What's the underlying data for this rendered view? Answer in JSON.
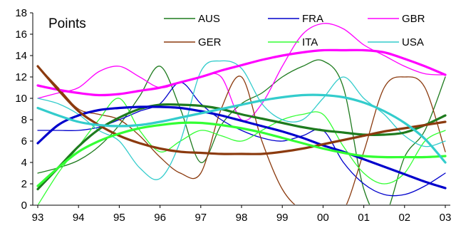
{
  "chart_data": {
    "type": "line",
    "title": "Points",
    "xlabel": "",
    "ylabel": "",
    "x_ticks": [
      "93",
      "94",
      "95",
      "96",
      "97",
      "98",
      "99",
      "00",
      "01",
      "02",
      "03"
    ],
    "x": [
      1993,
      1993.5,
      1994,
      1994.5,
      1995,
      1995.5,
      1996,
      1996.5,
      1997,
      1997.5,
      1998,
      1998.5,
      1999,
      1999.5,
      2000,
      2000.5,
      2001,
      2001.5,
      2002,
      2002.5,
      2003
    ],
    "ylim": [
      0,
      18
    ],
    "y_ticks": [
      0,
      2,
      4,
      6,
      8,
      10,
      12,
      14,
      16,
      18
    ],
    "grid": false,
    "legend": "top-right",
    "series": [
      {
        "name": "AUS",
        "color": "#1e7b1e",
        "style": "raw",
        "values": [
          3,
          3.5,
          4.2,
          5.5,
          7.5,
          10.2,
          13,
          9,
          4,
          7.5,
          9.5,
          10.5,
          12,
          13,
          13.5,
          11,
          1.5,
          -1,
          4.5,
          7,
          12
        ]
      },
      {
        "name": "FRA",
        "color": "#0000cc",
        "style": "raw",
        "values": [
          7,
          7,
          7,
          7.3,
          8,
          8.8,
          9.5,
          11.5,
          9.5,
          8,
          7,
          6.3,
          6,
          6.5,
          7,
          4,
          2,
          1,
          1,
          1.8,
          3
        ]
      },
      {
        "name": "GBR",
        "color": "#ff00ff",
        "style": "raw",
        "values": [
          10,
          10.5,
          11,
          12.5,
          13,
          12,
          11,
          11.5,
          12,
          12,
          8,
          9.5,
          13,
          16,
          17,
          16.5,
          15,
          14,
          13,
          12.3,
          12.2
        ]
      },
      {
        "name": "GER",
        "color": "#8b3a0e",
        "style": "raw",
        "values": [
          13,
          11,
          9,
          8.5,
          8,
          6.5,
          4.5,
          3,
          3,
          9,
          12,
          6,
          1.5,
          -0.5,
          -1,
          -0.5,
          5,
          11,
          12,
          11,
          5
        ]
      },
      {
        "name": "ITA",
        "color": "#33ff33",
        "style": "raw",
        "values": [
          0,
          3,
          5.5,
          8,
          10,
          7,
          5,
          6,
          7,
          6.5,
          6,
          7,
          8,
          8.5,
          8.5,
          5.5,
          3,
          2,
          3,
          6,
          7
        ]
      },
      {
        "name": "USA",
        "color": "#33cccc",
        "style": "raw",
        "values": [
          10,
          9.5,
          8.5,
          7,
          6,
          3.5,
          2.5,
          6,
          12.5,
          13.5,
          12.8,
          9.5,
          8,
          8,
          10,
          12,
          10,
          8.5,
          6.5,
          5.5,
          6
        ]
      },
      {
        "name": "",
        "color": "#1e7b1e",
        "style": "trend",
        "values": [
          1.5,
          3.5,
          5.5,
          7.1,
          8.2,
          9,
          9.4,
          9.4,
          9.3,
          9,
          8.5,
          8.1,
          7.7,
          7.3,
          7,
          6.8,
          6.6,
          6.6,
          6.8,
          7.5,
          8.4
        ]
      },
      {
        "name": "",
        "color": "#0000cc",
        "style": "trend",
        "values": [
          5.8,
          7.5,
          8.4,
          8.9,
          9.1,
          9.2,
          9.2,
          9.1,
          8.8,
          8.4,
          7.9,
          7.4,
          6.9,
          6.3,
          5.6,
          5,
          4.3,
          3.6,
          2.9,
          2.2,
          1.6
        ]
      },
      {
        "name": "",
        "color": "#ff00ff",
        "style": "trend",
        "values": [
          11.2,
          10.8,
          10.5,
          10.3,
          10.4,
          10.7,
          11,
          11.5,
          12,
          12.6,
          13.1,
          13.6,
          14,
          14.3,
          14.5,
          14.5,
          14.5,
          14.3,
          13.7,
          13,
          12.2
        ]
      },
      {
        "name": "",
        "color": "#8b3a0e",
        "style": "trend",
        "values": [
          13,
          10.8,
          8.8,
          7.5,
          6.5,
          5.8,
          5.3,
          5,
          4.9,
          4.8,
          4.8,
          4.8,
          5,
          5.3,
          5.7,
          6.1,
          6.5,
          6.9,
          7.2,
          7.5,
          7.8
        ]
      },
      {
        "name": "",
        "color": "#33ff33",
        "style": "trend",
        "values": [
          1.8,
          3.5,
          5,
          6,
          6.7,
          7.2,
          7.5,
          7.7,
          7.7,
          7.5,
          7.2,
          6.8,
          6.3,
          5.8,
          5.3,
          4.9,
          4.6,
          4.5,
          4.5,
          4.5,
          4.6
        ]
      },
      {
        "name": "",
        "color": "#33cccc",
        "style": "trend",
        "values": [
          9.1,
          8.4,
          7.8,
          7.5,
          7.4,
          7.5,
          7.8,
          8.2,
          8.6,
          9,
          9.4,
          9.8,
          10.1,
          10.3,
          10.3,
          10.1,
          9.6,
          8.8,
          7.7,
          6.2,
          4
        ]
      }
    ]
  }
}
